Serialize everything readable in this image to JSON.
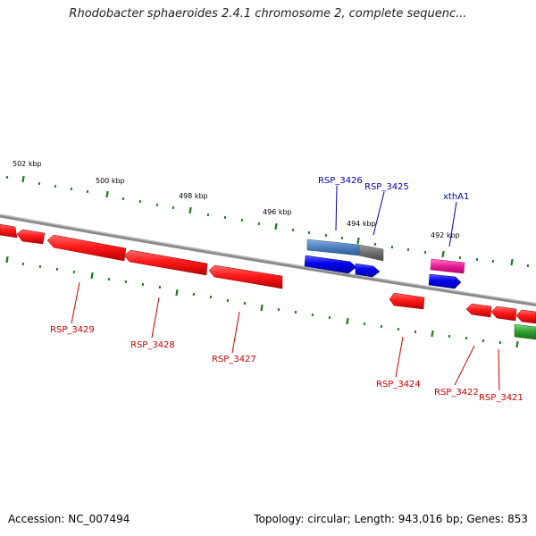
{
  "title": "Rhodobacter sphaeroides 2.4.1 chromosome 2, complete sequenc...",
  "footer": {
    "accession": "Accession: NC_007494",
    "stats": "Topology: circular; Length: 943,016 bp; Genes: 853"
  },
  "scale_labels": [
    "502 kbp",
    "500 kbp",
    "498 kbp",
    "496 kbp",
    "494 kbp",
    "492 kbp"
  ],
  "genes": {
    "top": [
      {
        "label": "RSP_3426",
        "color": "#0000aa"
      },
      {
        "label": "RSP_3425",
        "color": "#0000aa"
      },
      {
        "label": "xthA1",
        "color": "#0000aa"
      }
    ],
    "bottom": [
      {
        "label": "RSP_3429",
        "color": "#cc0000"
      },
      {
        "label": "RSP_3428",
        "color": "#cc0000"
      },
      {
        "label": "RSP_3427",
        "color": "#cc0000"
      },
      {
        "label": "RSP_3424",
        "color": "#cc0000"
      },
      {
        "label": "RSP_3422",
        "color": "#cc0000"
      },
      {
        "label": "RSP_3421",
        "color": "#cc0000"
      }
    ]
  },
  "colors": {
    "backbone": "#8a8a8a",
    "ticks": "#1a7a1a",
    "reverse_genes": "#ff1a1a",
    "forward_genes": "#0000ee",
    "blast_hit": "#4a7fbf",
    "rna_feature": "#e61e96",
    "other_feature": "#2e9e2e"
  }
}
